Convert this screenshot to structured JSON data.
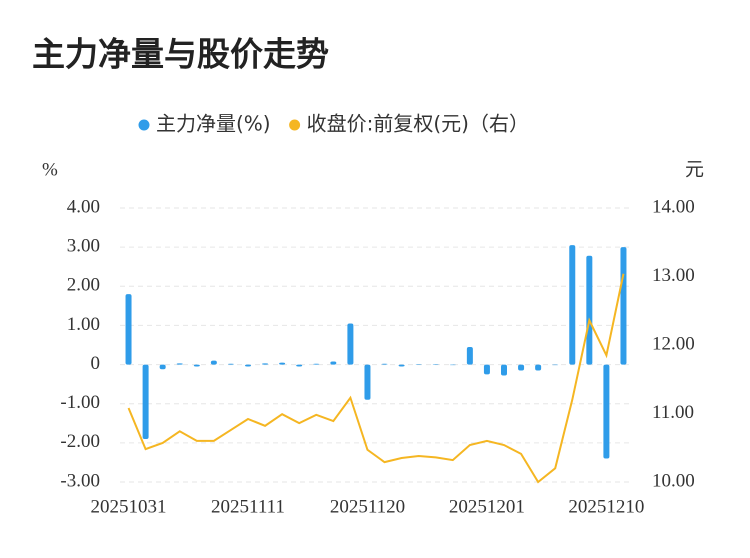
{
  "title": "主力净量与股价走势",
  "chart_data": {
    "type": "bar-line",
    "categories": [
      "20251031",
      null,
      null,
      null,
      null,
      null,
      null,
      "20251111",
      null,
      null,
      null,
      null,
      null,
      null,
      "20251120",
      null,
      null,
      null,
      null,
      null,
      null,
      "20251201",
      null,
      null,
      null,
      null,
      null,
      null,
      "20251210",
      null
    ],
    "series": [
      {
        "name": "主力净量(%)",
        "type": "bar",
        "color": "#2f9ce9",
        "values": [
          1.8,
          -1.9,
          -0.12,
          0.03,
          -0.05,
          0.1,
          0.02,
          -0.05,
          0.03,
          0.05,
          -0.05,
          0.02,
          0.08,
          1.05,
          -0.9,
          0.02,
          -0.05,
          0.01,
          0.01,
          0,
          0.45,
          -0.25,
          -0.28,
          -0.15,
          -0.15,
          0,
          3.05,
          2.78,
          -2.4,
          3.0
        ]
      },
      {
        "name": "收盘价:前复权(元)（右）",
        "type": "line",
        "axis": "y2",
        "color": "#f5b622",
        "values": [
          11.08,
          10.48,
          10.57,
          10.74,
          10.6,
          10.6,
          10.76,
          10.92,
          10.82,
          10.99,
          10.86,
          10.98,
          10.89,
          11.23,
          10.47,
          10.29,
          10.35,
          10.38,
          10.36,
          10.32,
          10.54,
          10.6,
          10.54,
          10.41,
          10.0,
          10.2,
          11.2,
          12.36,
          11.85,
          13.04
        ]
      }
    ],
    "y_label": "%",
    "y2_label": "元",
    "ylim": [
      -3,
      4
    ],
    "yticks": [
      {
        "value": 4,
        "label": "4.00"
      },
      {
        "value": 3,
        "label": "3.00"
      },
      {
        "value": 2,
        "label": "2.00"
      },
      {
        "value": 1,
        "label": "1.00"
      },
      0,
      {
        "value": -1,
        "label": "-1.00"
      },
      {
        "value": -2,
        "label": "-2.00"
      },
      {
        "value": -3,
        "label": "-3.00"
      }
    ],
    "y2lim": [
      10,
      14
    ],
    "y2ticks": [
      {
        "value": 14,
        "label": "14.00"
      },
      {
        "value": 13,
        "label": "13.00"
      },
      {
        "value": 12,
        "label": "12.00"
      },
      {
        "value": 11,
        "label": "11.00"
      },
      {
        "value": 10,
        "label": "10.00"
      }
    ],
    "grid": true,
    "legend": "top"
  }
}
